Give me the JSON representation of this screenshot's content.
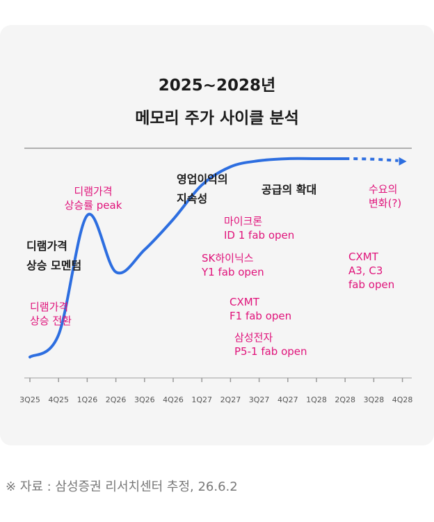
{
  "title": {
    "line1": "2025~2028년",
    "line2": "메모리 주가 사이클 분석"
  },
  "source": "※ 자료 : 삼성증권 리서치센터 추정, 26.6.2",
  "colors": {
    "curve": "#2d6ee0",
    "annotation": "#e0127a",
    "text": "#1a1a1a",
    "background": "#f5f5f5"
  },
  "chart_data": {
    "type": "line",
    "title": "2025~2028년 메모리 주가 사이클 분석",
    "categories": [
      "3Q25",
      "4Q25",
      "1Q26",
      "2Q26",
      "3Q26",
      "4Q26",
      "1Q27",
      "2Q27",
      "3Q27",
      "4Q27",
      "1Q28",
      "2Q28",
      "3Q28",
      "4Q28"
    ],
    "x": [
      0,
      1,
      2,
      3,
      4,
      5,
      6,
      7,
      8,
      9,
      10,
      11,
      12,
      13
    ],
    "y": [
      2,
      13,
      72,
      44,
      55,
      70,
      87,
      96,
      99,
      100,
      100,
      100,
      100,
      99
    ],
    "y_unit": "relative",
    "ylim": [
      0,
      105
    ],
    "forecast_from_x": 11.2,
    "grid": false,
    "legend": "none",
    "annotations": {
      "pink": [
        {
          "id": "dram_reversal",
          "text": "디램가격\n상승 전환"
        },
        {
          "id": "dram_peak",
          "text": "디램가격\n상승률 peak"
        },
        {
          "id": "micron",
          "text": "마이크론\nID 1 fab open"
        },
        {
          "id": "skhynix",
          "text": "SK하이닉스\nY1 fab open"
        },
        {
          "id": "cxmt_f1",
          "text": "CXMT\nF1 fab open"
        },
        {
          "id": "samsung",
          "text": "삼성전자\nP5-1 fab open"
        },
        {
          "id": "cxmt_a3",
          "text": "CXMT\nA3, C3\nfab open"
        },
        {
          "id": "demand",
          "text": "수요의\n변화(?)"
        }
      ],
      "dark": [
        {
          "id": "momentum",
          "text": "디램가격\n상승 모멘텀"
        },
        {
          "id": "profit",
          "text": "영업이익의\n지속성"
        },
        {
          "id": "supply",
          "text": "공급의 확대"
        }
      ]
    }
  }
}
